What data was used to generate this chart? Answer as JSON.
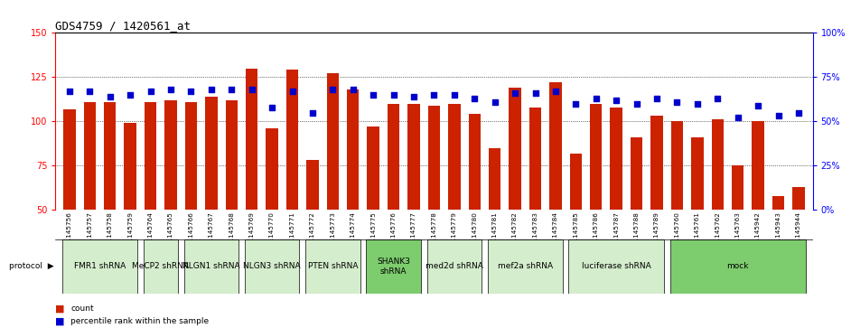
{
  "title": "GDS4759 / 1420561_at",
  "samples": [
    "GSM1145756",
    "GSM1145757",
    "GSM1145758",
    "GSM1145759",
    "GSM1145764",
    "GSM1145765",
    "GSM1145766",
    "GSM1145767",
    "GSM1145768",
    "GSM1145769",
    "GSM1145770",
    "GSM1145771",
    "GSM1145772",
    "GSM1145773",
    "GSM1145774",
    "GSM1145775",
    "GSM1145776",
    "GSM1145777",
    "GSM1145778",
    "GSM1145779",
    "GSM1145780",
    "GSM1145781",
    "GSM1145782",
    "GSM1145783",
    "GSM1145784",
    "GSM1145785",
    "GSM1145786",
    "GSM1145787",
    "GSM1145788",
    "GSM1145789",
    "GSM1145760",
    "GSM1145761",
    "GSM1145762",
    "GSM1145763",
    "GSM1145942",
    "GSM1145943",
    "GSM1145944"
  ],
  "bar_values": [
    107,
    111,
    111,
    99,
    111,
    112,
    111,
    114,
    112,
    130,
    96,
    129,
    78,
    127,
    118,
    97,
    110,
    110,
    109,
    110,
    104,
    85,
    119,
    108,
    122,
    82,
    110,
    108,
    91,
    103,
    100,
    91,
    101,
    75,
    100,
    58,
    63
  ],
  "blue_values": [
    67,
    67,
    64,
    65,
    67,
    68,
    67,
    68,
    68,
    68,
    58,
    67,
    55,
    68,
    68,
    65,
    65,
    64,
    65,
    65,
    63,
    61,
    66,
    66,
    67,
    60,
    63,
    62,
    60,
    63,
    61,
    60,
    63,
    52,
    59,
    53,
    55
  ],
  "protocol_groups": [
    {
      "label": "FMR1 shRNA",
      "start": 0,
      "end": 3,
      "color": "#d4edcc"
    },
    {
      "label": "MeCP2 shRNA",
      "start": 4,
      "end": 5,
      "color": "#d4edcc"
    },
    {
      "label": "NLGN1 shRNA",
      "start": 6,
      "end": 8,
      "color": "#d4edcc"
    },
    {
      "label": "NLGN3 shRNA",
      "start": 9,
      "end": 11,
      "color": "#d4edcc"
    },
    {
      "label": "PTEN shRNA",
      "start": 12,
      "end": 14,
      "color": "#d4edcc"
    },
    {
      "label": "SHANK3\nshRNA",
      "start": 15,
      "end": 17,
      "color": "#7dcc6e"
    },
    {
      "label": "med2d shRNA",
      "start": 18,
      "end": 20,
      "color": "#d4edcc"
    },
    {
      "label": "mef2a shRNA",
      "start": 21,
      "end": 24,
      "color": "#d4edcc"
    },
    {
      "label": "luciferase shRNA",
      "start": 25,
      "end": 29,
      "color": "#d4edcc"
    },
    {
      "label": "mock",
      "start": 30,
      "end": 36,
      "color": "#7dcc6e"
    }
  ],
  "ylim_left": [
    50,
    150
  ],
  "ylim_right": [
    0,
    100
  ],
  "yticks_left": [
    50,
    75,
    100,
    125,
    150
  ],
  "yticks_right": [
    0,
    25,
    50,
    75,
    100
  ],
  "ytick_labels_right": [
    "0%",
    "25%",
    "50%",
    "75%",
    "100%"
  ],
  "bar_color": "#cc2200",
  "dot_color": "#0000cc",
  "bar_width": 0.6,
  "title_fontsize": 9,
  "tick_fontsize": 7,
  "sample_fontsize": 5.2,
  "protocol_fontsize": 6.5
}
